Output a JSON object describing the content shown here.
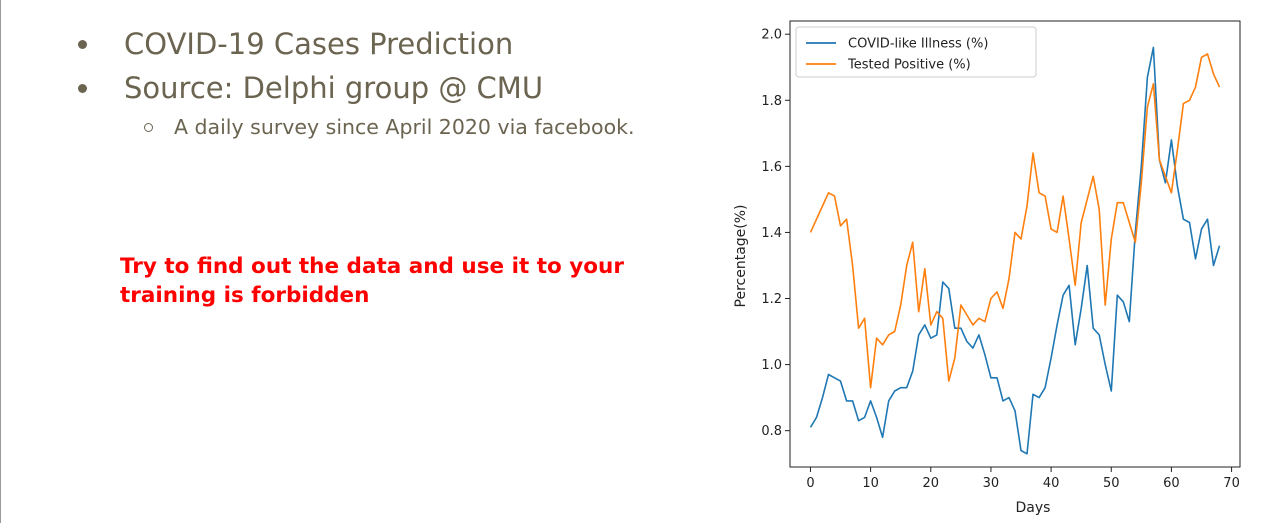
{
  "slide": {
    "bullets": [
      {
        "text": "COVID-19 Cases Prediction"
      },
      {
        "text": "Source: Delphi group @ CMU",
        "sub": [
          "A daily survey since April 2020 via facebook."
        ]
      }
    ],
    "warning": "Try to find out the data and use it to your training is forbidden",
    "text_color": "#6b6450",
    "warning_color": "#ff0000"
  },
  "chart_data": {
    "type": "line",
    "xlabel": "Days",
    "ylabel": "Percentage(%)",
    "xlim": [
      -3.4,
      71.4
    ],
    "ylim": [
      0.69,
      2.04
    ],
    "xticks": [
      0,
      10,
      20,
      30,
      40,
      50,
      60,
      70
    ],
    "yticks": [
      0.8,
      1.0,
      1.2,
      1.4,
      1.6,
      1.8,
      2.0
    ],
    "ytick_labels": [
      "0.8",
      "1.0",
      "1.2",
      "1.4",
      "1.6",
      "1.8",
      "2.0"
    ],
    "grid": false,
    "legend_position": "top-left",
    "x": [
      0,
      1,
      2,
      3,
      4,
      5,
      6,
      7,
      8,
      9,
      10,
      11,
      12,
      13,
      14,
      15,
      16,
      17,
      18,
      19,
      20,
      21,
      22,
      23,
      24,
      25,
      26,
      27,
      28,
      29,
      30,
      31,
      32,
      33,
      34,
      35,
      36,
      37,
      38,
      39,
      40,
      41,
      42,
      43,
      44,
      45,
      46,
      47,
      48,
      49,
      50,
      51,
      52,
      53,
      54,
      55,
      56,
      57,
      58,
      59,
      60,
      61,
      62,
      63,
      64,
      65,
      66,
      67,
      68
    ],
    "series": [
      {
        "name": "COVID-like Illness (%)",
        "color": "#1f77b4",
        "values": [
          0.81,
          0.84,
          0.9,
          0.97,
          0.96,
          0.95,
          0.89,
          0.89,
          0.83,
          0.84,
          0.89,
          0.84,
          0.78,
          0.89,
          0.92,
          0.93,
          0.93,
          0.98,
          1.09,
          1.12,
          1.08,
          1.09,
          1.25,
          1.23,
          1.11,
          1.11,
          1.07,
          1.05,
          1.09,
          1.03,
          0.96,
          0.96,
          0.89,
          0.9,
          0.86,
          0.74,
          0.73,
          0.91,
          0.9,
          0.93,
          1.02,
          1.12,
          1.21,
          1.24,
          1.06,
          1.17,
          1.3,
          1.11,
          1.09,
          1.0,
          0.92,
          1.21,
          1.19,
          1.13,
          1.4,
          1.6,
          1.87,
          1.96,
          1.62,
          1.55,
          1.68,
          1.54,
          1.44,
          1.43,
          1.32,
          1.41,
          1.44,
          1.3,
          1.36
        ]
      },
      {
        "name": "Tested Positive (%)",
        "color": "#ff7f0e",
        "values": [
          1.4,
          1.44,
          1.48,
          1.52,
          1.51,
          1.42,
          1.44,
          1.3,
          1.11,
          1.14,
          0.93,
          1.08,
          1.06,
          1.09,
          1.1,
          1.18,
          1.3,
          1.37,
          1.16,
          1.29,
          1.12,
          1.16,
          1.14,
          0.95,
          1.02,
          1.18,
          1.15,
          1.12,
          1.14,
          1.13,
          1.2,
          1.22,
          1.17,
          1.26,
          1.4,
          1.38,
          1.48,
          1.64,
          1.52,
          1.51,
          1.41,
          1.4,
          1.51,
          1.38,
          1.24,
          1.43,
          1.5,
          1.57,
          1.47,
          1.18,
          1.38,
          1.49,
          1.49,
          1.43,
          1.37,
          1.55,
          1.78,
          1.85,
          1.62,
          1.57,
          1.52,
          1.65,
          1.79,
          1.8,
          1.84,
          1.93,
          1.94,
          1.88,
          1.84
        ]
      }
    ]
  }
}
